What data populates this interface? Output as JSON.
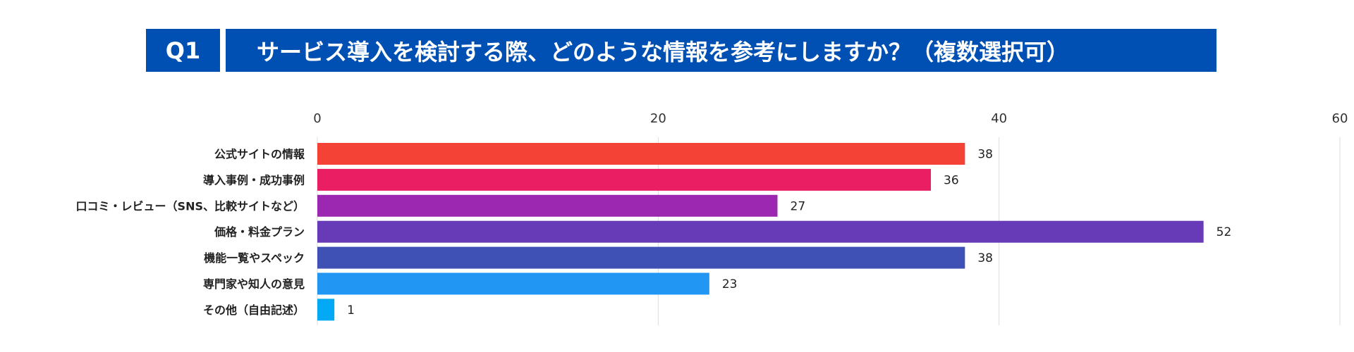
{
  "header": {
    "question_number": "Q1",
    "question_text": "サービス導入を検討する際、どのような情報を参考にしますか？（複数選択可）",
    "color": "#0050b3"
  },
  "chart_data": {
    "type": "bar",
    "orientation": "horizontal",
    "categories": [
      "公式サイトの情報",
      "導入事例・成功事例",
      "口コミ・レビュー（SNS、比較サイトなど）",
      "価格・料金プラン",
      "機能一覧やスペック",
      "専門家や知人の意見",
      "その他（自由記述）"
    ],
    "values": [
      38,
      36,
      27,
      52,
      38,
      23,
      1
    ],
    "colors": [
      "#f44336",
      "#e91e63",
      "#9c27b0",
      "#673ab7",
      "#3f51b5",
      "#2196f3",
      "#03a9f4"
    ],
    "xlim": [
      0,
      60
    ],
    "xticks": [
      0,
      20,
      40,
      60
    ],
    "xtick_labels": [
      "0",
      "20",
      "40",
      "60"
    ],
    "axis_position": "top",
    "grid": true,
    "data_labels": true,
    "title": "",
    "xlabel": "",
    "ylabel": ""
  }
}
